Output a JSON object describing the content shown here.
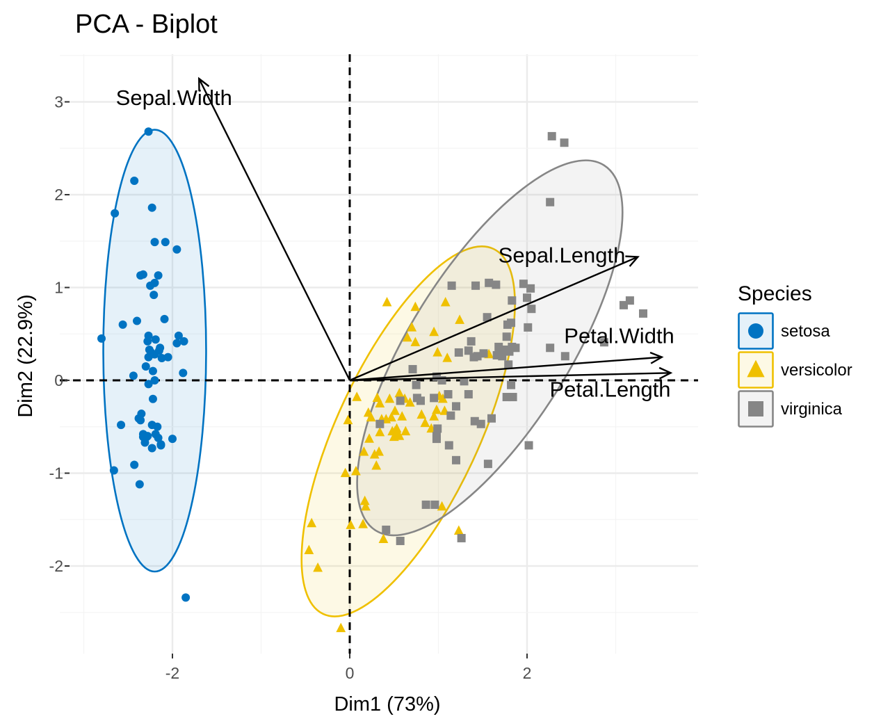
{
  "chart_data": {
    "type": "scatter",
    "title": "PCA - Biplot",
    "xlabel": "Dim1 (73%)",
    "ylabel": "Dim2 (22.9%)",
    "xlim": [
      -3.0,
      4.0
    ],
    "ylim": [
      -2.95,
      3.5
    ],
    "x_ticks": [
      -2,
      0,
      2
    ],
    "y_ticks": [
      -2,
      -1,
      0,
      1,
      2,
      3
    ],
    "grid": true,
    "reference_lines": {
      "x": 0,
      "y": 0
    },
    "legend": {
      "title": "Species",
      "position": "right"
    },
    "groups": [
      {
        "name": "setosa",
        "color": "#0073C2",
        "fill": "#0073C2",
        "marker": "circle",
        "ellipse": {
          "cx": -2.2,
          "cy": 0.32,
          "rx": 0.58,
          "ry": 2.38,
          "angle": 0
        },
        "points": [
          [
            -2.27,
            2.68
          ],
          [
            -2.43,
            2.15
          ],
          [
            -2.65,
            1.8
          ],
          [
            -2.23,
            1.86
          ],
          [
            -2.2,
            1.49
          ],
          [
            -2.08,
            1.49
          ],
          [
            -1.95,
            1.41
          ],
          [
            -2.33,
            1.14
          ],
          [
            -2.36,
            1.13
          ],
          [
            -2.16,
            1.13
          ],
          [
            -2.2,
            1.05
          ],
          [
            -2.25,
            1.02
          ],
          [
            -2.21,
            0.92
          ],
          [
            -2.4,
            0.64
          ],
          [
            -2.56,
            0.6
          ],
          [
            -2.09,
            0.66
          ],
          [
            -1.93,
            0.48
          ],
          [
            -1.95,
            0.4
          ],
          [
            -1.87,
            0.42
          ],
          [
            -2.27,
            0.48
          ],
          [
            -2.28,
            0.42
          ],
          [
            -2.19,
            0.44
          ],
          [
            -2.14,
            0.35
          ],
          [
            -2.24,
            0.3
          ],
          [
            -2.2,
            0.28
          ],
          [
            -2.15,
            0.32
          ],
          [
            -2.27,
            0.25
          ],
          [
            -2.12,
            0.24
          ],
          [
            -2.26,
            0.33
          ],
          [
            -2.05,
            0.25
          ],
          [
            -2.8,
            0.45
          ],
          [
            -1.88,
            0.08
          ],
          [
            -2.3,
            0.15
          ],
          [
            -2.22,
            0.1
          ],
          [
            -2.44,
            0.05
          ],
          [
            -2.2,
            0.0
          ],
          [
            -2.27,
            -0.04
          ],
          [
            -2.22,
            -0.2
          ],
          [
            -2.35,
            -0.36
          ],
          [
            -2.38,
            -0.41
          ],
          [
            -2.58,
            -0.48
          ],
          [
            -2.23,
            -0.48
          ],
          [
            -2.17,
            -0.5
          ],
          [
            -2.33,
            -0.58
          ],
          [
            -2.19,
            -0.58
          ],
          [
            -2.32,
            -0.6
          ],
          [
            -2.28,
            -0.6
          ],
          [
            -2.16,
            -0.62
          ],
          [
            -2.13,
            -0.7
          ],
          [
            -2.29,
            -0.61
          ],
          [
            -2.36,
            -0.43
          ],
          [
            -2.31,
            -0.67
          ],
          [
            -2.43,
            -0.91
          ],
          [
            -2.66,
            -0.97
          ],
          [
            -2.37,
            -1.12
          ],
          [
            -1.85,
            -2.34
          ],
          [
            -2.33,
            -0.61
          ],
          [
            -2.23,
            -0.73
          ],
          [
            -2.0,
            -0.63
          ],
          [
            -2.13,
            -0.69
          ]
        ]
      },
      {
        "name": "versicolor",
        "color": "#EFC000",
        "fill": "#EFC000",
        "marker": "triangle",
        "ellipse": {
          "cx": 0.66,
          "cy": -0.55,
          "rx": 0.8,
          "ry": 2.17,
          "angle": 25
        },
        "points": [
          [
            0.42,
            0.84
          ],
          [
            0.74,
            0.79
          ],
          [
            1.08,
            0.84
          ],
          [
            0.7,
            0.57
          ],
          [
            1.24,
            0.65
          ],
          [
            0.95,
            0.52
          ],
          [
            0.65,
            0.46
          ],
          [
            0.74,
            0.41
          ],
          [
            0.99,
            0.3
          ],
          [
            1.1,
            0.24
          ],
          [
            1.57,
            0.28
          ],
          [
            0.08,
            -0.18
          ],
          [
            0.31,
            -0.19
          ],
          [
            0.34,
            -0.25
          ],
          [
            0.45,
            -0.2
          ],
          [
            0.56,
            -0.14
          ],
          [
            0.62,
            -0.2
          ],
          [
            0.68,
            -0.24
          ],
          [
            1.01,
            -0.17
          ],
          [
            1.05,
            -0.2
          ],
          [
            0.51,
            -0.33
          ],
          [
            0.21,
            -0.35
          ],
          [
            0.24,
            -0.4
          ],
          [
            0.36,
            -0.42
          ],
          [
            0.47,
            -0.4
          ],
          [
            0.59,
            -0.39
          ],
          [
            0.81,
            -0.37
          ],
          [
            0.95,
            -0.39
          ],
          [
            0.98,
            -0.32
          ],
          [
            1.07,
            -0.33
          ],
          [
            0.34,
            -0.56
          ],
          [
            0.48,
            -0.55
          ],
          [
            0.51,
            -0.55
          ],
          [
            0.53,
            -0.52
          ],
          [
            0.54,
            -0.58
          ],
          [
            0.5,
            -0.61
          ],
          [
            0.56,
            -0.6
          ],
          [
            0.85,
            -0.46
          ],
          [
            0.92,
            -0.52
          ],
          [
            0.33,
            -0.77
          ],
          [
            0.16,
            -0.77
          ],
          [
            0.28,
            -0.8
          ],
          [
            0.3,
            -0.92
          ],
          [
            0.63,
            -0.55
          ],
          [
            -0.05,
            -1.0
          ],
          [
            0.07,
            -0.98
          ],
          [
            -0.02,
            -0.43
          ],
          [
            0.17,
            -1.3
          ],
          [
            0.18,
            -1.36
          ],
          [
            1.04,
            -1.36
          ],
          [
            -0.43,
            -1.54
          ],
          [
            -0.46,
            -1.83
          ],
          [
            -0.36,
            -2.02
          ],
          [
            0.01,
            -1.56
          ],
          [
            0.15,
            -1.55
          ],
          [
            0.38,
            -1.71
          ],
          [
            1.23,
            -1.62
          ],
          [
            -0.1,
            -2.67
          ],
          [
            0.41,
            -0.42
          ],
          [
            0.22,
            -0.63
          ]
        ]
      },
      {
        "name": "virginica",
        "color": "#868686",
        "fill": "#868686",
        "marker": "square",
        "ellipse": {
          "cx": 1.58,
          "cy": 0.35,
          "rx": 0.9,
          "ry": 2.32,
          "angle": 32
        },
        "points": [
          [
            2.28,
            2.63
          ],
          [
            2.42,
            2.56
          ],
          [
            2.26,
            1.92
          ],
          [
            1.57,
            1.05
          ],
          [
            1.65,
            1.03
          ],
          [
            1.42,
            1.02
          ],
          [
            1.96,
            1.04
          ],
          [
            2.04,
            0.99
          ],
          [
            2.0,
            0.89
          ],
          [
            1.83,
            0.86
          ],
          [
            2.05,
            0.77
          ],
          [
            1.15,
            1.02
          ],
          [
            1.55,
            0.68
          ],
          [
            1.82,
            0.62
          ],
          [
            1.77,
            0.47
          ],
          [
            2.01,
            0.57
          ],
          [
            1.83,
            0.36
          ],
          [
            1.37,
            0.42
          ],
          [
            1.87,
            0.35
          ],
          [
            2.26,
            0.35
          ],
          [
            2.87,
            0.41
          ],
          [
            3.31,
            0.72
          ],
          [
            3.16,
            0.86
          ],
          [
            3.09,
            0.81
          ],
          [
            1.78,
            0.6
          ],
          [
            1.23,
            0.3
          ],
          [
            1.34,
            0.32
          ],
          [
            1.44,
            0.26
          ],
          [
            1.51,
            0.29
          ],
          [
            1.66,
            0.27
          ],
          [
            1.72,
            0.26
          ],
          [
            1.7,
            0.29
          ],
          [
            1.75,
            0.33
          ],
          [
            1.8,
            0.31
          ],
          [
            1.68,
            0.36
          ],
          [
            2.43,
            0.26
          ],
          [
            1.4,
            0.25
          ],
          [
            0.98,
            0.04
          ],
          [
            1.04,
            0.0
          ],
          [
            1.29,
            -0.01
          ],
          [
            0.71,
            0.12
          ],
          [
            0.75,
            -0.05
          ],
          [
            1.79,
            0.17
          ],
          [
            1.82,
            -0.05
          ],
          [
            1.11,
            -0.15
          ],
          [
            1.34,
            -0.15
          ],
          [
            0.8,
            -0.22
          ],
          [
            1.2,
            -0.28
          ],
          [
            1.14,
            -0.38
          ],
          [
            1.6,
            -0.41
          ],
          [
            0.95,
            -0.19
          ],
          [
            1.41,
            -0.44
          ],
          [
            1.48,
            -0.47
          ],
          [
            1.77,
            -0.18
          ],
          [
            1.84,
            -0.18
          ],
          [
            0.99,
            -0.52
          ],
          [
            0.98,
            -0.6
          ],
          [
            0.98,
            -0.63
          ],
          [
            1.12,
            -0.7
          ],
          [
            1.2,
            -0.86
          ],
          [
            1.56,
            -0.9
          ],
          [
            2.02,
            -0.7
          ],
          [
            0.41,
            -1.61
          ],
          [
            0.57,
            -1.73
          ],
          [
            0.86,
            -1.34
          ],
          [
            0.96,
            -1.34
          ],
          [
            0.76,
            -0.19
          ],
          [
            0.34,
            -0.47
          ],
          [
            0.57,
            -0.22
          ],
          [
            1.26,
            -1.7
          ]
        ]
      }
    ],
    "loadings": [
      {
        "name": "Sepal.Width",
        "x": -1.7,
        "y": 3.25
      },
      {
        "name": "Sepal.Length",
        "x": 3.25,
        "y": 1.33
      },
      {
        "name": "Petal.Width",
        "x": 3.52,
        "y": 0.25
      },
      {
        "name": "Petal.Length",
        "x": 3.62,
        "y": 0.08
      }
    ]
  }
}
